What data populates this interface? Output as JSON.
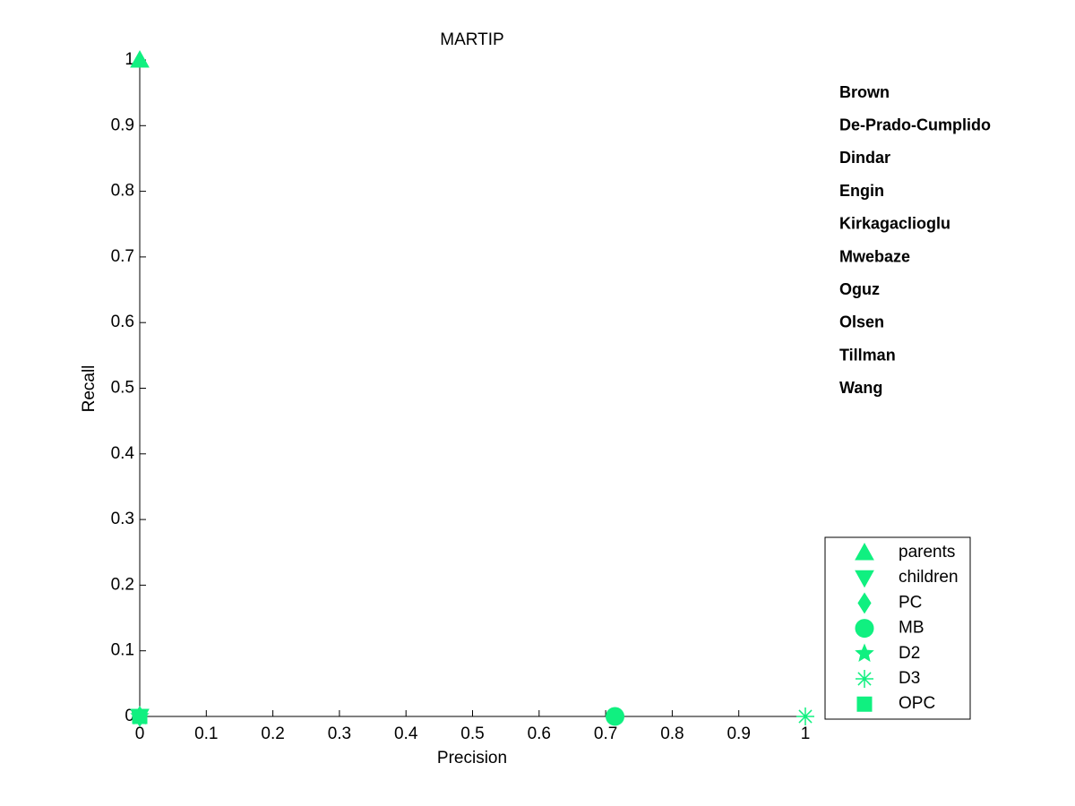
{
  "chart_data": {
    "type": "scatter",
    "title": "MARTIP",
    "x_label": "Precision",
    "y_label": "Recall",
    "xlim": [
      0,
      1
    ],
    "ylim": [
      0,
      1
    ],
    "xticks": [
      0,
      0.1,
      0.2,
      0.3,
      0.4,
      0.5,
      0.6,
      0.7,
      0.8,
      0.9,
      1
    ],
    "yticks": [
      0,
      0.1,
      0.2,
      0.3,
      0.4,
      0.5,
      0.6,
      0.7,
      0.8,
      0.9,
      1
    ],
    "series": [
      {
        "name": "parents",
        "marker": "triangle-up",
        "color": "#10f080",
        "x": [
          0
        ],
        "values": [
          1
        ]
      },
      {
        "name": "children",
        "marker": "triangle-down",
        "color": "#10f080",
        "x": [
          0
        ],
        "values": [
          0
        ]
      },
      {
        "name": "PC",
        "marker": "diamond",
        "color": "#10f080",
        "x": [
          0
        ],
        "values": [
          0
        ]
      },
      {
        "name": "MB",
        "marker": "circle",
        "color": "#10f080",
        "x": [
          0.714
        ],
        "values": [
          0
        ]
      },
      {
        "name": "D2",
        "marker": "star",
        "color": "#10f080",
        "x": [
          0
        ],
        "values": [
          0
        ]
      },
      {
        "name": "D3",
        "marker": "asterisk",
        "color": "#10f080",
        "x": [
          1
        ],
        "values": [
          0
        ]
      },
      {
        "name": "OPC",
        "marker": "square",
        "color": "#10f080",
        "x": [
          0
        ],
        "values": [
          0
        ]
      }
    ],
    "annotations": [
      {
        "text": "Brown",
        "color": "#e01010"
      },
      {
        "text": "De-Prado-Cumplido",
        "color": "#f08020"
      },
      {
        "text": "Dindar",
        "color": "#f0f010"
      },
      {
        "text": "Engin",
        "color": "#80f020"
      },
      {
        "text": "Kirkagaclioglu",
        "color": "#20e020"
      },
      {
        "text": "Mwebaze",
        "color": "#20e080"
      },
      {
        "text": "Oguz",
        "color": "#20e0e0"
      },
      {
        "text": "Olsen",
        "color": "#1070d0"
      },
      {
        "text": "Tillman",
        "color": "#1010b0"
      },
      {
        "text": "Wang",
        "color": "#7010d0"
      }
    ]
  }
}
